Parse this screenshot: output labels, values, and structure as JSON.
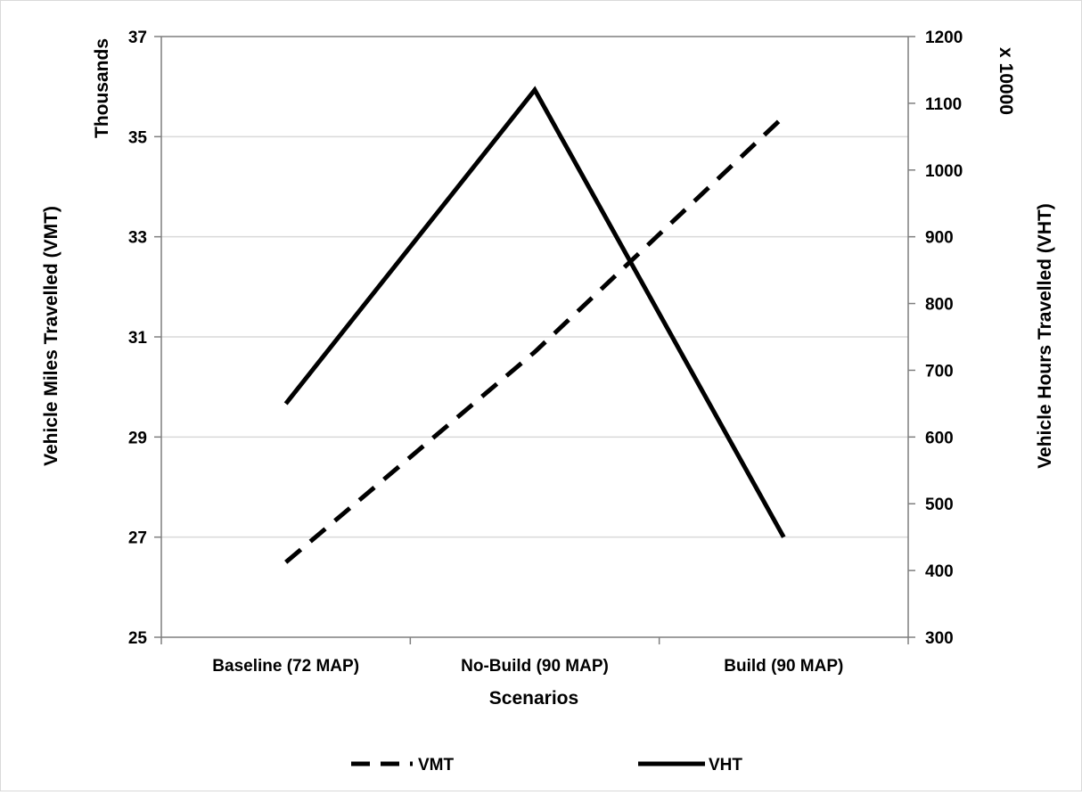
{
  "chart_data": {
    "type": "line",
    "title": "",
    "categories": [
      "Baseline (72 MAP)",
      "No-Build (90 MAP)",
      "Build (90 MAP)"
    ],
    "xlabel": "Scenarios",
    "ylabel_left": "Vehicle Miles Travelled (VMT)",
    "ylabel_left_unit": "Thousands",
    "ylabel_right": "Vehicle Hours Travelled (VHT)",
    "ylabel_right_unit": "x 10000",
    "y_left": {
      "min": 25,
      "max": 37,
      "ticks": [
        25,
        27,
        29,
        31,
        33,
        35,
        37
      ],
      "tick_labels": [
        "25",
        "27",
        "29",
        "31",
        "33",
        "35",
        "37"
      ]
    },
    "y_right": {
      "min": 300,
      "max": 1200,
      "ticks": [
        300,
        400,
        500,
        600,
        700,
        800,
        900,
        1000,
        1100,
        1200
      ],
      "tick_labels": [
        "300",
        "400",
        "500",
        "600",
        "700",
        "800",
        "900",
        "1000",
        "1100",
        "1200"
      ]
    },
    "grid": true,
    "legend_position": "bottom",
    "series": [
      {
        "name": "VMT",
        "axis": "left",
        "style": "dashed",
        "color": "#000000",
        "values": [
          26.5,
          30.7,
          35.4
        ]
      },
      {
        "name": "VHT",
        "axis": "right",
        "style": "solid",
        "color": "#000000",
        "values": [
          650,
          1120,
          450
        ]
      }
    ]
  }
}
